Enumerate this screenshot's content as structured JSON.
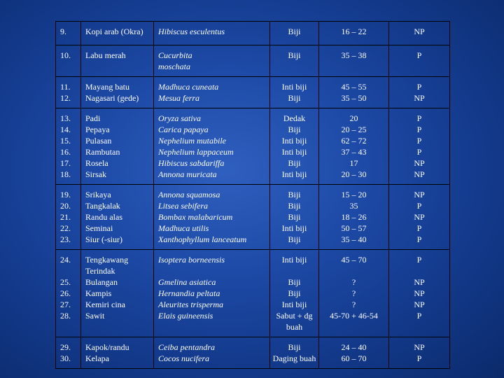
{
  "rows": [
    {
      "no": "9.",
      "name": "Kopi arab (Okra)",
      "sci": "Hibiscus esculentus",
      "part": "Biji",
      "val": "16 – 22",
      "st": "NP"
    },
    {
      "no": "10.",
      "name": "Labu merah",
      "sci": "Cucurbita\nmoschata",
      "part": "Biji",
      "val": "35 – 38",
      "st": "P"
    },
    {
      "no": "11.\n12.",
      "name": "Mayang batu\nNagasari (gede)",
      "sci": "Madhuca cuneata\nMesua ferra",
      "part": "Inti biji\nBiji",
      "val": "45 – 55\n35 – 50",
      "st": "P\nNP"
    },
    {
      "no": "13.\n14.\n15.\n16.\n17.\n18.",
      "name": "Padi\nPepaya\nPulasan\nRambutan\nRosela\nSirsak",
      "sci": "Oryza sativa\nCarica papaya\nNephelium mutabile\nNephelium lappaceum\nHibiscus sabdariffa\nAnnona muricata",
      "part": "Dedak\nBiji\nInti biji\nInti biji\nBiji\nInti biji",
      "val": "20\n20 – 25\n62 – 72\n37 – 43\n17\n20 – 30",
      "st": "P\nP\nP\nP\nNP\nNP"
    },
    {
      "no": "19.\n20.\n21.\n22.\n23.",
      "name": "Srikaya\nTangkalak\nRandu alas\nSeminai\nSiur (-siur)",
      "sci": "Annona squamosa\nLitsea sebifera\nBombax malabaricum\nMadhuca utilis\nXanthophyllum lanceatum",
      "part": "Biji\nBiji\nBiji\nInti biji\nBiji",
      "val": "15 – 20\n35\n18 – 26\n50 – 57\n35 – 40",
      "st": "NP\nP\nNP\nP\nP"
    },
    {
      "no": "24.\n\n25.\n26.\n27.\n28.",
      "name": "Tengkawang\nTerindak\nBulangan\nKampis\nKemiri cina\nSawit",
      "sci": "Isoptera borneensis\n\nGmelina asiatica\nHernandia peltata\nAleurites trisperma\nElais guineensis",
      "part": "Inti biji\n\nBiji\nBiji\nInti biji\nSabut + dg\nbuah",
      "val": "45 – 70\n\n?\n?\n?\n45-70 + 46-54",
      "st": "P\n\nNP\nNP\nNP\nP"
    },
    {
      "no": "29.\n30.",
      "name": "Kapok/randu\nKelapa",
      "sci": "Ceiba pentandra\nCocos nucifera",
      "part": "Biji\nDaging buah",
      "val": "24 – 40\n60 – 70",
      "st": "NP\nP"
    }
  ]
}
